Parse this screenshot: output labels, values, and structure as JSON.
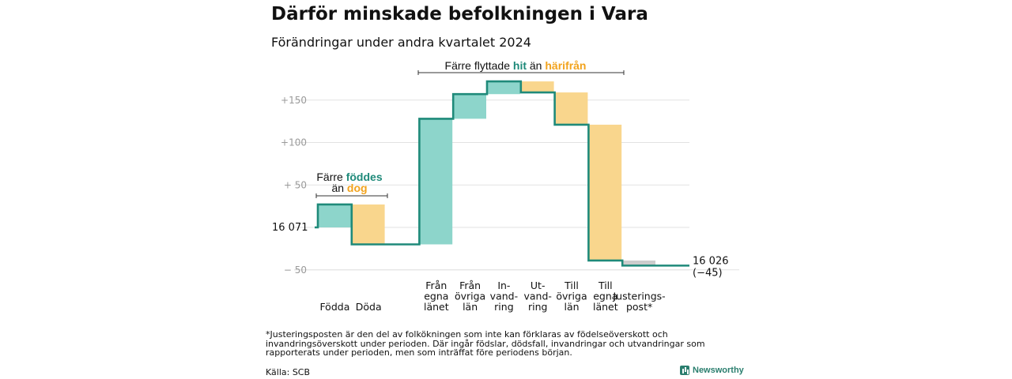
{
  "title": "Därför minskade befolkningen i Vara",
  "subtitle": "Förändringar under andra kvartalet 2024",
  "colors": {
    "positive": "#8dd5cb",
    "negative": "#f9d68d",
    "line": "#1f8a7a",
    "adjust": "#cccccc",
    "teal_text": "#1f8a7a",
    "orange_text": "#f2a31d"
  },
  "chart_data": {
    "type": "waterfall",
    "start_value": 16071,
    "start_label": "16  071",
    "end_value": 16026,
    "end_label": "16 026",
    "end_change": "(−45)",
    "y_ticks": [
      {
        "value": 150,
        "label": "+150"
      },
      {
        "value": 100,
        "label": "+100"
      },
      {
        "value": 50,
        "label": "+  50"
      },
      {
        "value": 0,
        "label": ""
      },
      {
        "value": -50,
        "label": "−  50"
      }
    ],
    "steps": [
      {
        "label": [
          "Födda"
        ],
        "value": 27,
        "kind": "positive"
      },
      {
        "label": [
          "Döda"
        ],
        "value": -47,
        "kind": "negative"
      },
      {
        "label": [],
        "value": 0,
        "kind": "gap"
      },
      {
        "label": [
          "Från",
          "egna",
          "länet"
        ],
        "value": 148,
        "kind": "positive"
      },
      {
        "label": [
          "Från",
          "övriga",
          "län"
        ],
        "value": 29,
        "kind": "positive"
      },
      {
        "label": [
          "In-",
          "vand-",
          "ring"
        ],
        "value": 15,
        "kind": "positive"
      },
      {
        "label": [
          "Ut-",
          "vand-",
          "ring"
        ],
        "value": -13,
        "kind": "negative"
      },
      {
        "label": [
          "Till",
          "övriga",
          "län"
        ],
        "value": -38,
        "kind": "negative"
      },
      {
        "label": [
          "Till",
          "egna",
          "länet"
        ],
        "value": -160,
        "kind": "negative"
      },
      {
        "label": [
          "Justerings-",
          "post*"
        ],
        "value": -6,
        "kind": "adjust"
      }
    ],
    "annotations": {
      "births": {
        "line1": "Färre ",
        "line1_highlight": "föddes",
        "line2": "än ",
        "line2_highlight": "dog"
      },
      "moves": {
        "text": "Färre flyttade ",
        "highlight1": "hit",
        "middle": "  än ",
        "highlight2": "härifrån"
      }
    }
  },
  "footnote": "*Justeringsposten är den del av folkökningen som inte kan förklaras av födelseöverskott och invandringsöverskott under perioden. Där ingår födslar, dödsfall, invandringar och utvandringar som rapporterats under perioden, men som inträffat före periodens början.",
  "source": "Källa: SCB",
  "brand": "Newsworthy"
}
